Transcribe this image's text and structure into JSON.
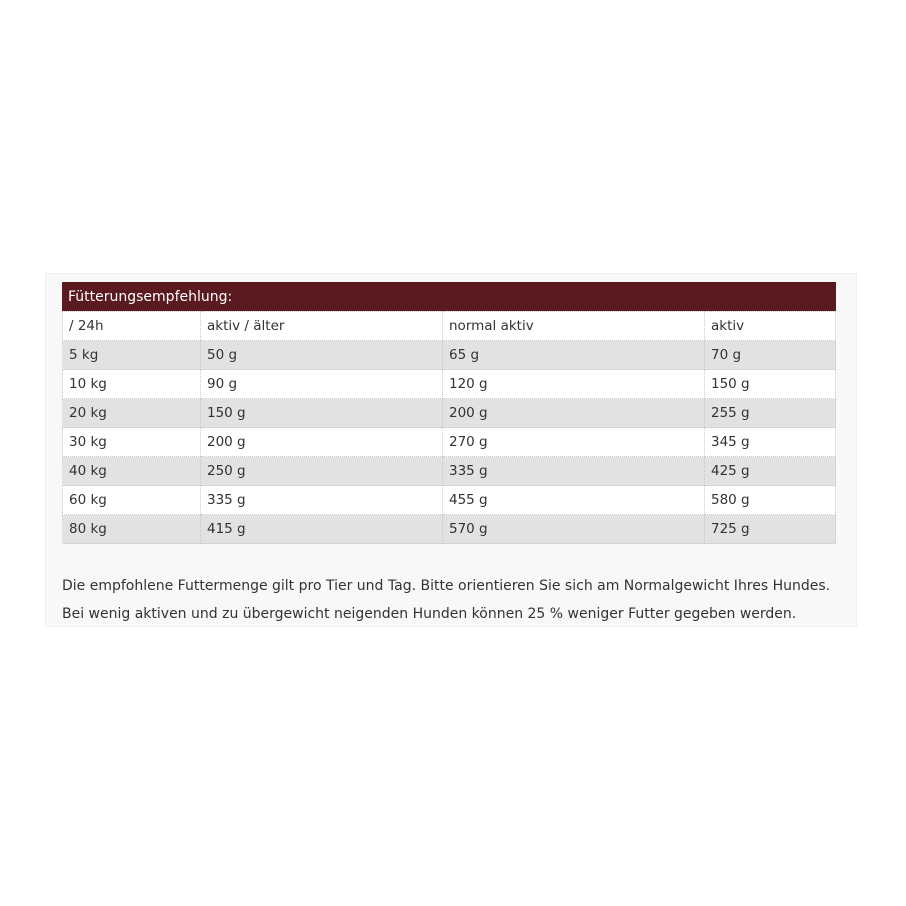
{
  "table": {
    "caption": "Fütterungsempfehlung:",
    "headers": [
      " / 24h",
      "aktiv / älter",
      "normal aktiv",
      "aktiv"
    ],
    "rows": [
      [
        "5 kg",
        "50 g",
        "65 g",
        "70 g"
      ],
      [
        "10 kg",
        "90 g",
        "120 g",
        "150 g"
      ],
      [
        "20 kg",
        "150 g",
        "200 g",
        "255 g"
      ],
      [
        "30 kg",
        "200 g",
        "270 g",
        "345 g"
      ],
      [
        "40 kg",
        "250 g",
        "335 g",
        "425 g"
      ],
      [
        "60 kg",
        "335 g",
        "455 g",
        "580 g"
      ],
      [
        "80 kg",
        "415 g",
        "570 g",
        "725 g"
      ]
    ]
  },
  "note": "Die empfohlene Futtermenge gilt pro Tier und Tag. Bitte orientieren Sie sich am Normalgewicht Ihres Hundes. Bei wenig aktiven und zu übergewicht neigenden Hunden können 25 % weniger Futter gegeben werden.",
  "colors": {
    "header": "#5a1a1f",
    "row_alt": "#e2e2e2"
  }
}
